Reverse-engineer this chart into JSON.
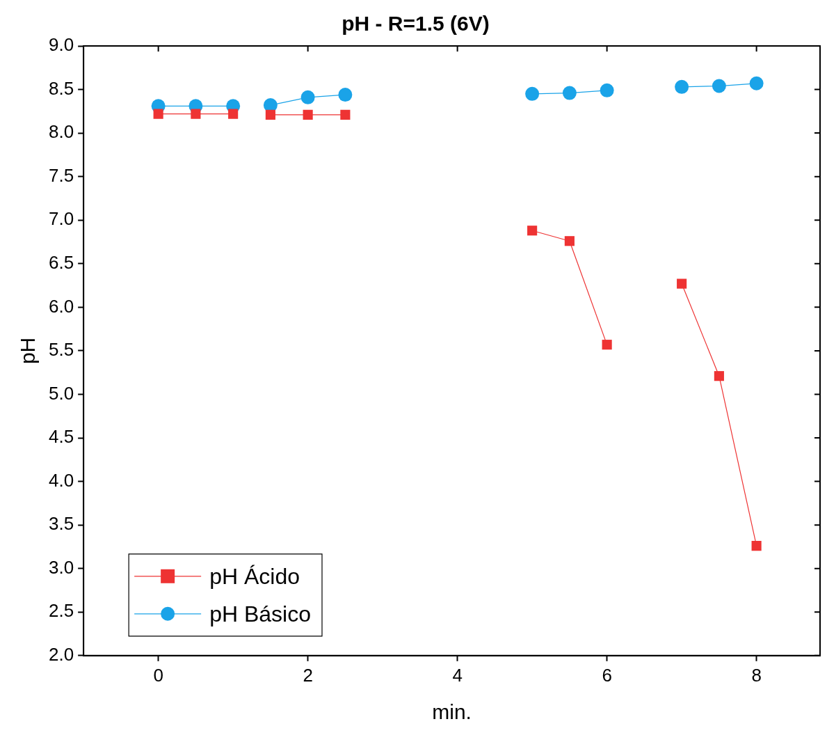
{
  "chart_data": {
    "type": "line",
    "title": "pH - R=1.5 (6V)",
    "xlabel": "min.",
    "ylabel": "pH",
    "x": [
      0,
      0.5,
      1,
      1.25,
      1.5,
      2,
      2.5,
      3.75,
      5,
      5.5,
      6,
      6.5,
      7,
      7.5,
      8
    ],
    "series": [
      {
        "name": "pH Ácido",
        "color": "#ee3333",
        "marker": "square",
        "values": [
          8.22,
          8.22,
          8.22,
          null,
          8.21,
          8.21,
          8.21,
          null,
          6.88,
          6.76,
          5.57,
          null,
          6.27,
          5.21,
          3.26
        ]
      },
      {
        "name": "pH Básico",
        "color": "#1aa3e8",
        "marker": "circle",
        "values": [
          8.31,
          8.31,
          8.31,
          null,
          8.32,
          8.41,
          8.44,
          null,
          8.45,
          8.46,
          8.49,
          null,
          8.53,
          8.54,
          8.57
        ]
      }
    ],
    "xlim": [
      -1,
      8.85
    ],
    "xticks": [
      0,
      2,
      4,
      6,
      8
    ],
    "ylim": [
      2,
      9
    ],
    "yticks": [
      {
        "value": 2,
        "label": "2.0"
      },
      {
        "value": 2.5,
        "label": "2.5"
      },
      {
        "value": 3,
        "label": "3.0"
      },
      {
        "value": 3.5,
        "label": "3.5"
      },
      {
        "value": 4,
        "label": "4.0"
      },
      {
        "value": 4.5,
        "label": "4.5"
      },
      {
        "value": 5,
        "label": "5.0"
      },
      {
        "value": 5.5,
        "label": "5.5"
      },
      {
        "value": 6,
        "label": "6.0"
      },
      {
        "value": 6.5,
        "label": "6.5"
      },
      {
        "value": 7,
        "label": "7.0"
      },
      {
        "value": 7.5,
        "label": "7.5"
      },
      {
        "value": 8,
        "label": "8.0"
      },
      {
        "value": 8.5,
        "label": "8.5"
      },
      {
        "value": 9,
        "label": "9.0"
      }
    ],
    "grid": false,
    "legend": "bottom left",
    "line_style": "solid"
  }
}
